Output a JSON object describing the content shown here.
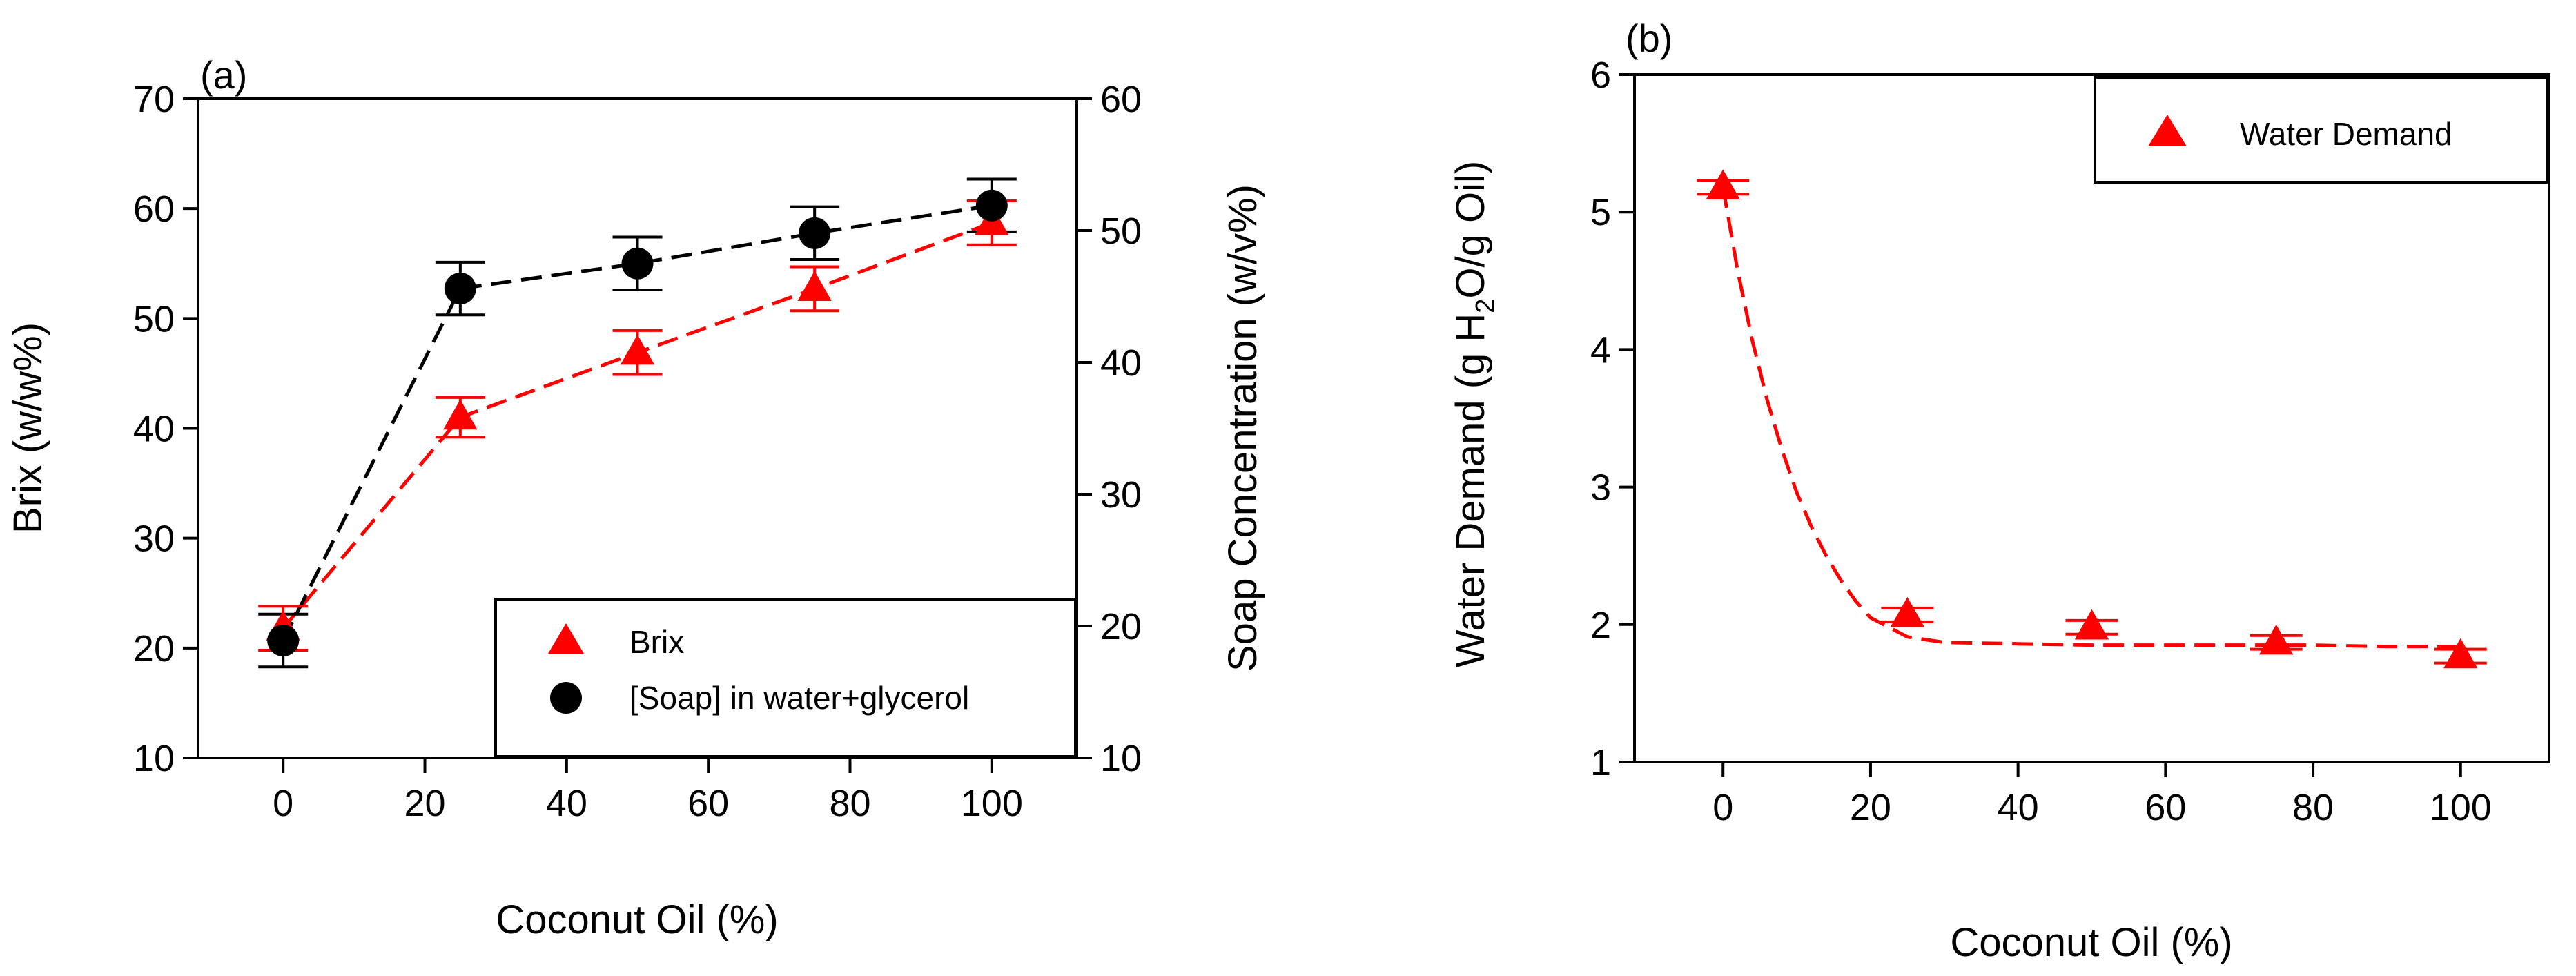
{
  "chart_data": [
    {
      "panel_label": "(a)",
      "type": "line",
      "xlabel": "Coconut Oil (%)",
      "ylabel": "Brix (w/w%)",
      "y2label": "Soap Concentration (w/v%)",
      "xlim": [
        -12,
        112
      ],
      "xticks": [
        0,
        20,
        40,
        60,
        80,
        100
      ],
      "ylim": [
        10,
        70
      ],
      "yticks": [
        10,
        20,
        30,
        40,
        50,
        60,
        70
      ],
      "y2lim": [
        10,
        60
      ],
      "y2ticks": [
        10,
        20,
        30,
        40,
        50,
        60
      ],
      "legend_position": "bottom-right",
      "series": [
        {
          "name": "Brix",
          "axis": "left",
          "marker": "triangle",
          "color": "#ff0000",
          "x": [
            0,
            25,
            50,
            75,
            100
          ],
          "y": [
            21.8,
            41.0,
            46.9,
            52.7,
            58.7
          ],
          "err": [
            2.0,
            1.8,
            2.0,
            2.0,
            2.0
          ]
        },
        {
          "name": "[Soap] in water+glycerol",
          "axis": "right",
          "marker": "circle",
          "color": "#000000",
          "x": [
            0,
            25,
            50,
            75,
            100
          ],
          "y": [
            18.9,
            45.6,
            47.5,
            49.8,
            51.9
          ],
          "err": [
            2.0,
            2.0,
            2.0,
            2.0,
            2.0
          ]
        }
      ]
    },
    {
      "panel_label": "(b)",
      "type": "scatter",
      "xlabel": "Coconut Oil (%)",
      "ylabel_parts": [
        "Water Demand (g H",
        "2",
        "O/g Oil)"
      ],
      "xlim": [
        -12,
        112
      ],
      "xticks": [
        0,
        20,
        40,
        60,
        80,
        100
      ],
      "ylim": [
        1,
        6
      ],
      "yticks": [
        1,
        2,
        3,
        4,
        5,
        6
      ],
      "legend_position": "top-right",
      "series": [
        {
          "name": "Water Demand",
          "marker": "triangle",
          "color": "#ff0000",
          "x": [
            0,
            25,
            50,
            75,
            100
          ],
          "y": [
            5.18,
            2.07,
            1.98,
            1.87,
            1.77
          ],
          "err": [
            0.05,
            0.05,
            0.05,
            0.05,
            0.05
          ]
        }
      ],
      "fit": {
        "type": "exponential",
        "color": "#ff0000",
        "x": [
          0,
          2,
          4,
          6,
          8,
          10,
          12,
          14,
          16,
          18,
          20,
          25,
          30,
          40,
          50,
          60,
          70,
          80,
          90,
          100
        ],
        "y": [
          5.18,
          4.57,
          4.06,
          3.63,
          3.27,
          2.96,
          2.71,
          2.5,
          2.32,
          2.17,
          2.05,
          1.91,
          1.87,
          1.86,
          1.85,
          1.85,
          1.85,
          1.85,
          1.84,
          1.84
        ]
      }
    }
  ]
}
